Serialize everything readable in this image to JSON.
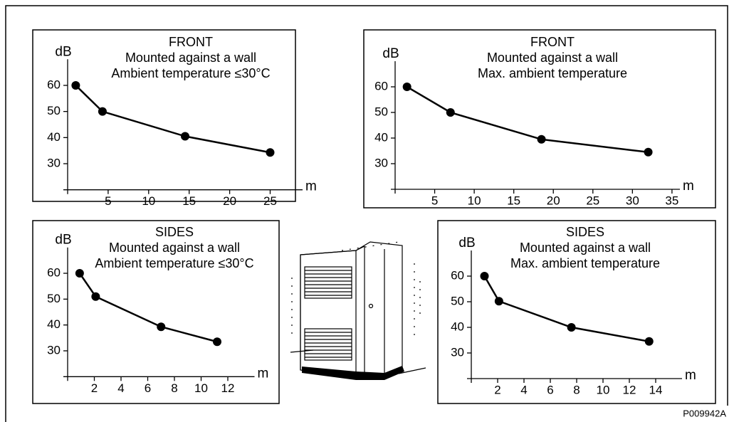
{
  "figure_id": "P009942A",
  "chart_data": [
    {
      "type": "line",
      "title": [
        "FRONT",
        "Mounted against a wall",
        "Ambient temperature ≤30°C"
      ],
      "y_label": "dB",
      "x_label": "m",
      "color": "#000000",
      "x": [
        1,
        4.3,
        14.5,
        25
      ],
      "values": [
        60,
        50,
        40.5,
        34.3
      ],
      "xlim": [
        0,
        29
      ],
      "ylim": [
        20,
        70
      ],
      "xticks": [
        5,
        10,
        15,
        20,
        25
      ],
      "yticks": [
        30,
        40,
        50,
        60
      ]
    },
    {
      "type": "line",
      "title": [
        "FRONT",
        "Mounted against a wall",
        "Max. ambient temperature"
      ],
      "y_label": "dB",
      "x_label": "m",
      "color": "#000000",
      "x": [
        1.5,
        7,
        18.5,
        32
      ],
      "values": [
        60,
        50,
        39.5,
        34.5
      ],
      "xlim": [
        0,
        36
      ],
      "ylim": [
        20,
        70
      ],
      "xticks": [
        5,
        10,
        15,
        20,
        25,
        30,
        35
      ],
      "yticks": [
        30,
        40,
        50,
        60
      ]
    },
    {
      "type": "line",
      "title": [
        "SIDES",
        "Mounted against a wall",
        "Ambient temperature ≤30°C"
      ],
      "y_label": "dB",
      "x_label": "m",
      "color": "#000000",
      "x": [
        0.9,
        2.1,
        7,
        11.2
      ],
      "values": [
        60,
        51,
        39.3,
        33.5
      ],
      "xlim": [
        0,
        14
      ],
      "ylim": [
        20,
        70
      ],
      "xticks": [
        2,
        4,
        6,
        8,
        10,
        12
      ],
      "yticks": [
        30,
        40,
        50,
        60
      ]
    },
    {
      "type": "line",
      "title": [
        "SIDES",
        "Mounted against a wall",
        "Max. ambient temperature"
      ],
      "y_label": "dB",
      "x_label": "m",
      "color": "#000000",
      "x": [
        1,
        2.1,
        7.6,
        13.5
      ],
      "values": [
        60,
        50.2,
        40,
        34.5
      ],
      "xlim": [
        0,
        16
      ],
      "ylim": [
        20,
        70
      ],
      "xticks": [
        2,
        4,
        6,
        8,
        10,
        12,
        14
      ],
      "yticks": [
        30,
        40,
        50,
        60
      ]
    }
  ]
}
